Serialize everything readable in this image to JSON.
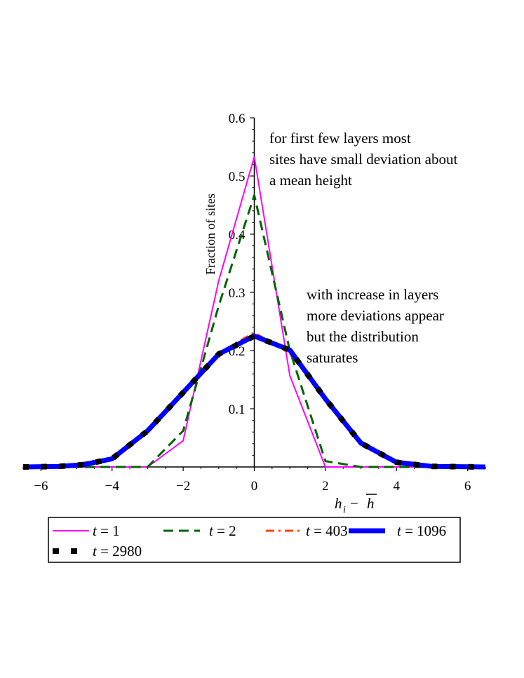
{
  "chart_data": {
    "type": "line",
    "xlabel": "h_i − h̄",
    "ylabel": "Fraction of sites",
    "xlim": [
      -6.5,
      6.5
    ],
    "ylim": [
      0,
      0.6
    ],
    "x_ticks": [
      -6,
      -4,
      -2,
      0,
      2,
      4,
      6
    ],
    "x_tick_labels": [
      "−6",
      "−4",
      "−2",
      "0",
      "2",
      "4",
      "6"
    ],
    "y_ticks": [
      0.1,
      0.2,
      0.3,
      0.4,
      0.5,
      0.6
    ],
    "y_tick_labels": [
      "0.1",
      "0.2",
      "0.3",
      "0.4",
      "0.5",
      "0.6"
    ],
    "grid": false,
    "legend_position": "bottom",
    "series": [
      {
        "name": "t = 1",
        "color": "#ff00ff",
        "style": "solid",
        "x": [
          -6.5,
          -3,
          -2,
          -1,
          0,
          1,
          2,
          3,
          6.5
        ],
        "y": [
          0,
          0,
          0.045,
          0.32,
          0.533,
          0.157,
          0,
          0,
          0
        ]
      },
      {
        "name": "t = 2",
        "color": "#006400",
        "style": "dash",
        "x": [
          -6.5,
          -3,
          -2,
          -1,
          0,
          1,
          2,
          3,
          6.5
        ],
        "y": [
          0,
          0,
          0.062,
          0.277,
          0.467,
          0.2,
          0.01,
          0,
          0
        ]
      },
      {
        "name": "t = 403",
        "color": "#ff4500",
        "style": "dashdot",
        "x": [
          -6.5,
          -5.5,
          -5,
          -4,
          -3,
          -2,
          -1,
          0,
          1,
          2,
          3,
          4,
          5,
          6.5
        ],
        "y": [
          0,
          0.001,
          0.005,
          0.016,
          0.062,
          0.127,
          0.196,
          0.231,
          0.195,
          0.116,
          0.044,
          0.011,
          0.002,
          0
        ]
      },
      {
        "name": "t = 1096",
        "color": "#0000ff",
        "style": "thick",
        "x": [
          -6.5,
          -5.5,
          -4.8,
          -4,
          -3,
          -2,
          -1,
          0,
          1,
          2,
          3,
          4,
          5,
          6.5
        ],
        "y": [
          0,
          0.001,
          0.004,
          0.014,
          0.062,
          0.128,
          0.194,
          0.225,
          0.201,
          0.117,
          0.041,
          0.008,
          0.001,
          0
        ]
      },
      {
        "name": "t = 2980",
        "color": "#000000",
        "style": "dot",
        "x": [
          -6.5,
          -5.5,
          -4.8,
          -4,
          -3,
          -2,
          -1,
          0,
          1,
          2,
          3,
          4,
          5,
          6.5
        ],
        "y": [
          0,
          0.001,
          0.004,
          0.014,
          0.062,
          0.128,
          0.194,
          0.225,
          0.201,
          0.117,
          0.041,
          0.008,
          0.001,
          0
        ]
      }
    ],
    "annotations": [
      {
        "lines": [
          "for first few layers most",
          "sites have small deviation about",
          "a mean height"
        ]
      },
      {
        "lines": [
          "with increase in layers",
          "more deviations appear",
          "but the distribution",
          "saturates"
        ]
      }
    ]
  }
}
